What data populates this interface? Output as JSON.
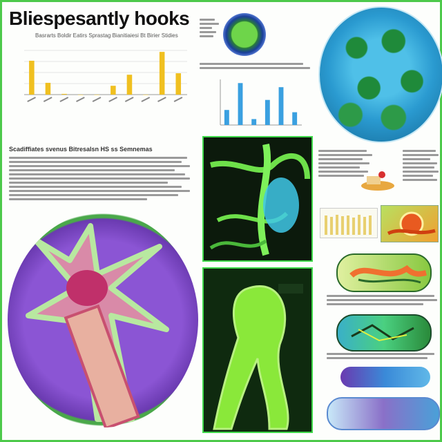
{
  "poster": {
    "title": "Bliespesantly hooks",
    "subtitle": "Basrarts Boldir Eatirs Sprastag Bianitiaiesi Bt Birier Stidies",
    "section_heading": "Scadiffiates svenus Bitresalsn HS ss Semnemas"
  },
  "colors": {
    "border": "#4cc94a",
    "bar_yellow": "#f0c020",
    "bar_blue": "#3aa0e0",
    "purple": "#8a3fb8",
    "green": "#7fe03a"
  },
  "chart_data": [
    {
      "type": "bar",
      "values": [
        46,
        16,
        1,
        0,
        0,
        12,
        27,
        0,
        58,
        29
      ]
    },
    {
      "type": "bar",
      "values": [
        33,
        92,
        13,
        55,
        83,
        28
      ]
    }
  ]
}
